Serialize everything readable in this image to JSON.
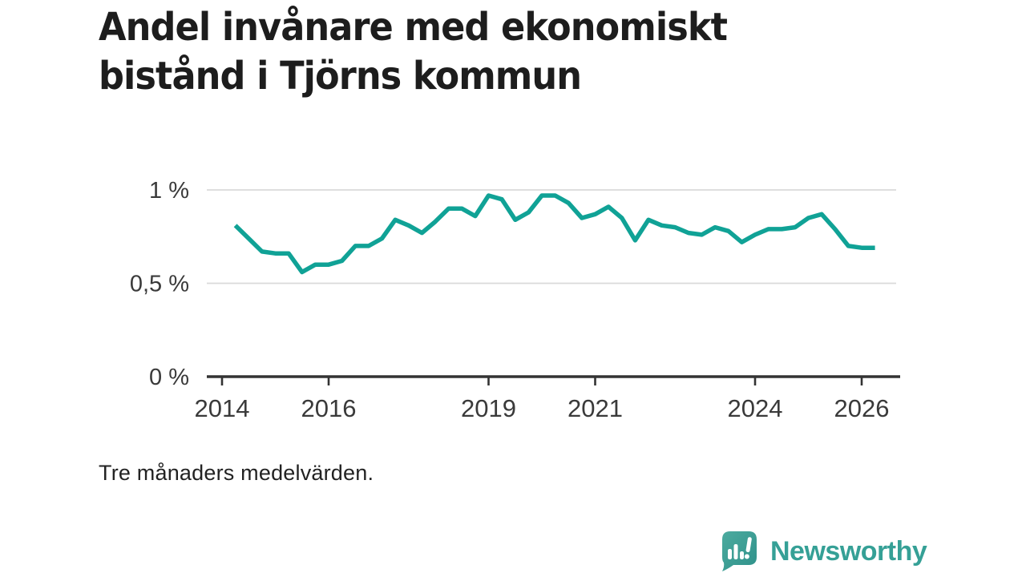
{
  "title": {
    "line1": "Andel invånare med ekonomiskt",
    "line2": "bistånd i Tjörns kommun"
  },
  "footer": {
    "note": "Tre månaders medelvärden."
  },
  "branding": {
    "name": "Newsworthy",
    "logo_icon": "bar-chart-speech-bubble-icon",
    "brand_color": "#35a096",
    "badge_gradient_top": "#4cab9f",
    "badge_gradient_bottom": "#2f918a"
  },
  "colors": {
    "line": "#10a296",
    "grid": "#dadada",
    "axis": "#333333",
    "tick_text": "#3a3a3a",
    "title_text": "#1d1d1d",
    "background": "#ffffff"
  },
  "chart_data": {
    "type": "line",
    "title": "Andel invånare med ekonomiskt bistånd i Tjörns kommun",
    "subtitle": "",
    "xlabel": "",
    "ylabel": "",
    "unit": "%",
    "note": "Tre månaders medelvärden.",
    "grid": "horizontal",
    "legend_position": "none",
    "xlim": [
      2013.7,
      2026.72
    ],
    "ylim": [
      0,
      1.05
    ],
    "yticks": [
      {
        "value": 1,
        "label": "1 %",
        "gridline": true
      },
      {
        "value": 0.5,
        "label": "0,5 %",
        "gridline": true
      },
      {
        "value": 0,
        "label": "0 %",
        "gridline": false
      }
    ],
    "xticks": [
      {
        "value": 2014,
        "label": "2014"
      },
      {
        "value": 2016,
        "label": "2016"
      },
      {
        "value": 2019,
        "label": "2019"
      },
      {
        "value": 2021,
        "label": "2021"
      },
      {
        "value": 2024,
        "label": "2024"
      },
      {
        "value": 2026,
        "label": "2026"
      }
    ],
    "series": [
      {
        "name": "Andel invånare med ekonomiskt bistånd",
        "color": "#10a296",
        "x": [
          2014.25,
          2014.5,
          2014.75,
          2015.0,
          2015.25,
          2015.5,
          2015.75,
          2016.0,
          2016.25,
          2016.5,
          2016.75,
          2017.0,
          2017.25,
          2017.5,
          2017.75,
          2018.0,
          2018.25,
          2018.5,
          2018.75,
          2019.0,
          2019.25,
          2019.5,
          2019.75,
          2020.0,
          2020.25,
          2020.5,
          2020.75,
          2021.0,
          2021.25,
          2021.5,
          2021.75,
          2022.0,
          2022.25,
          2022.5,
          2022.75,
          2023.0,
          2023.25,
          2023.5,
          2023.75,
          2024.0,
          2024.25,
          2024.5,
          2024.75,
          2025.0,
          2025.25,
          2025.5,
          2025.75,
          2026.0,
          2026.25
        ],
        "values": [
          0.81,
          0.74,
          0.67,
          0.66,
          0.66,
          0.56,
          0.6,
          0.6,
          0.62,
          0.7,
          0.7,
          0.74,
          0.84,
          0.81,
          0.77,
          0.83,
          0.9,
          0.9,
          0.86,
          0.97,
          0.95,
          0.84,
          0.88,
          0.97,
          0.97,
          0.93,
          0.85,
          0.87,
          0.91,
          0.85,
          0.73,
          0.84,
          0.81,
          0.8,
          0.77,
          0.76,
          0.8,
          0.78,
          0.72,
          0.76,
          0.79,
          0.79,
          0.8,
          0.85,
          0.87,
          0.79,
          0.7,
          0.69,
          0.69
        ]
      }
    ]
  }
}
